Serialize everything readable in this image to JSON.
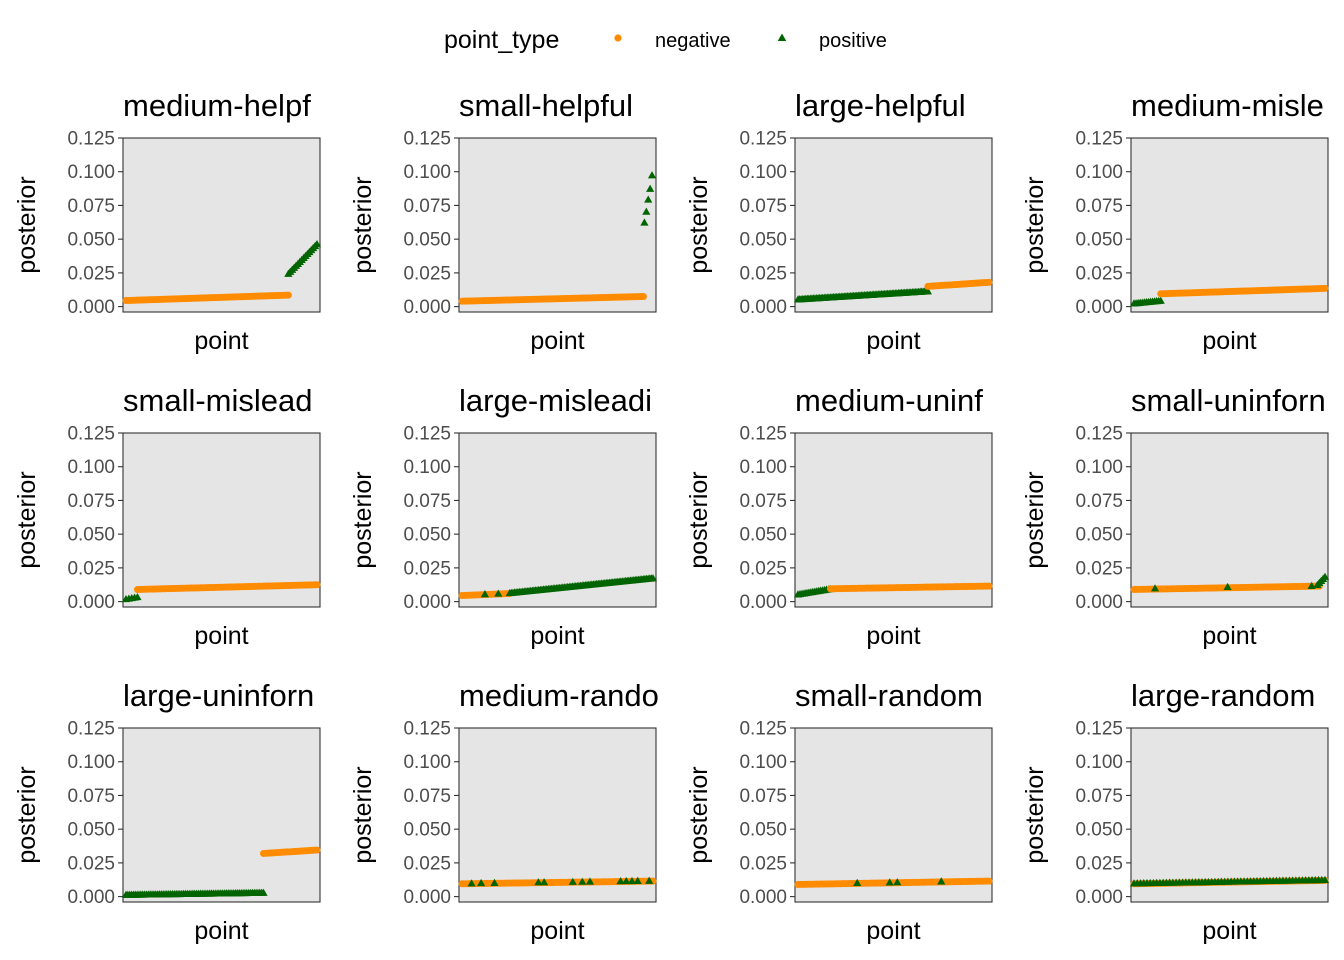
{
  "chart_data": {
    "type": "scatter",
    "legend": {
      "title": "point_type",
      "placement": "top",
      "entries": [
        {
          "name": "negative",
          "color": "#FF8C00",
          "shape": "circle"
        },
        {
          "name": "positive",
          "color": "#006400",
          "shape": "triangle"
        }
      ]
    },
    "xlabel": "point",
    "ylabel": "posterior",
    "ylim": [
      -0.004,
      0.125
    ],
    "yticks": [
      "0.000",
      "0.025",
      "0.050",
      "0.075",
      "0.100",
      "0.125"
    ],
    "ytick_values": [
      0,
      0.025,
      0.05,
      0.075,
      0.1,
      0.125
    ],
    "panel_background": "#E5E5E5",
    "panels": [
      {
        "title": "medium-helpf",
        "segments": [
          {
            "type": "negative",
            "x0": 0.0,
            "x1": 0.85,
            "y0": 0.0045,
            "y1": 0.0085,
            "n": 90
          },
          {
            "type": "positive",
            "x0": 0.85,
            "x1": 1.0,
            "y0": 0.024,
            "y1": 0.046,
            "n": 16
          }
        ]
      },
      {
        "title": "small-helpful",
        "segments": [
          {
            "type": "negative",
            "x0": 0.0,
            "x1": 0.95,
            "y0": 0.004,
            "y1": 0.0075,
            "n": 95
          }
        ],
        "points": [
          {
            "type": "positive",
            "x": 0.955,
            "y": 0.062
          },
          {
            "type": "positive",
            "x": 0.965,
            "y": 0.07
          },
          {
            "type": "positive",
            "x": 0.975,
            "y": 0.079
          },
          {
            "type": "positive",
            "x": 0.985,
            "y": 0.087
          },
          {
            "type": "positive",
            "x": 0.995,
            "y": 0.097
          }
        ]
      },
      {
        "title": "large-helpful",
        "segments": [
          {
            "type": "positive",
            "x0": 0.0,
            "x1": 0.68,
            "y0": 0.005,
            "y1": 0.011,
            "n": 85
          },
          {
            "type": "negative",
            "x0": 0.68,
            "x1": 1.0,
            "y0": 0.015,
            "y1": 0.018,
            "n": 35
          }
        ]
      },
      {
        "title": "medium-misle",
        "segments": [
          {
            "type": "positive",
            "x0": 0.0,
            "x1": 0.14,
            "y0": 0.002,
            "y1": 0.004,
            "n": 14
          },
          {
            "type": "negative",
            "x0": 0.14,
            "x1": 1.0,
            "y0": 0.0095,
            "y1": 0.0135,
            "n": 90
          }
        ]
      },
      {
        "title": "small-mislead",
        "segments": [
          {
            "type": "positive",
            "x0": 0.0,
            "x1": 0.06,
            "y0": 0.0015,
            "y1": 0.003,
            "n": 5
          },
          {
            "type": "negative",
            "x0": 0.06,
            "x1": 1.0,
            "y0": 0.009,
            "y1": 0.0125,
            "n": 95
          }
        ]
      },
      {
        "title": "large-misleadi",
        "segments": [
          {
            "type": "negative",
            "x0": 0.0,
            "x1": 0.25,
            "y0": 0.0045,
            "y1": 0.006,
            "n": 25
          },
          {
            "type": "positive",
            "x0": 0.25,
            "x1": 1.0,
            "y0": 0.006,
            "y1": 0.017,
            "n": 90
          }
        ],
        "points": [
          {
            "type": "positive",
            "x": 0.12,
            "y": 0.0052
          },
          {
            "type": "positive",
            "x": 0.19,
            "y": 0.0056
          }
        ]
      },
      {
        "title": "medium-uninf",
        "segments": [
          {
            "type": "positive",
            "x0": 0.0,
            "x1": 0.17,
            "y0": 0.005,
            "y1": 0.009,
            "n": 17
          },
          {
            "type": "negative",
            "x0": 0.17,
            "x1": 1.0,
            "y0": 0.0095,
            "y1": 0.0115,
            "n": 85
          }
        ]
      },
      {
        "title": "small-uninforn",
        "segments": [
          {
            "type": "negative",
            "x0": 0.0,
            "x1": 0.97,
            "y0": 0.009,
            "y1": 0.0115,
            "n": 95
          },
          {
            "type": "positive",
            "x0": 0.96,
            "x1": 1.0,
            "y0": 0.012,
            "y1": 0.018,
            "n": 5
          }
        ],
        "points": [
          {
            "type": "positive",
            "x": 0.11,
            "y": 0.0095
          },
          {
            "type": "positive",
            "x": 0.49,
            "y": 0.0105
          },
          {
            "type": "positive",
            "x": 0.93,
            "y": 0.0113
          }
        ]
      },
      {
        "title": "large-uninforn",
        "segments": [
          {
            "type": "positive",
            "x0": 0.0,
            "x1": 0.72,
            "y0": 0.001,
            "y1": 0.0025,
            "n": 75
          },
          {
            "type": "negative",
            "x0": 0.72,
            "x1": 1.0,
            "y0": 0.032,
            "y1": 0.0345,
            "n": 30
          }
        ]
      },
      {
        "title": "medium-rando",
        "segments": [
          {
            "type": "negative",
            "x0": 0.0,
            "x1": 1.0,
            "y0": 0.0095,
            "y1": 0.0115,
            "n": 100
          }
        ],
        "points": [
          {
            "type": "positive",
            "x": 0.05,
            "y": 0.0095
          },
          {
            "type": "positive",
            "x": 0.1,
            "y": 0.0097
          },
          {
            "type": "positive",
            "x": 0.17,
            "y": 0.0098
          },
          {
            "type": "positive",
            "x": 0.4,
            "y": 0.0103
          },
          {
            "type": "positive",
            "x": 0.43,
            "y": 0.0103
          },
          {
            "type": "positive",
            "x": 0.58,
            "y": 0.0106
          },
          {
            "type": "positive",
            "x": 0.63,
            "y": 0.0107
          },
          {
            "type": "positive",
            "x": 0.67,
            "y": 0.0108
          },
          {
            "type": "positive",
            "x": 0.83,
            "y": 0.0111
          },
          {
            "type": "positive",
            "x": 0.86,
            "y": 0.0112
          },
          {
            "type": "positive",
            "x": 0.89,
            "y": 0.0112
          },
          {
            "type": "positive",
            "x": 0.92,
            "y": 0.0113
          },
          {
            "type": "positive",
            "x": 0.98,
            "y": 0.0114
          }
        ]
      },
      {
        "title": "small-random",
        "segments": [
          {
            "type": "negative",
            "x0": 0.0,
            "x1": 1.0,
            "y0": 0.009,
            "y1": 0.0115,
            "n": 100
          }
        ],
        "points": [
          {
            "type": "positive",
            "x": 0.31,
            "y": 0.0098
          },
          {
            "type": "positive",
            "x": 0.48,
            "y": 0.0102
          },
          {
            "type": "positive",
            "x": 0.52,
            "y": 0.0103
          },
          {
            "type": "positive",
            "x": 0.75,
            "y": 0.0109
          }
        ]
      },
      {
        "title": "large-random",
        "segments": [
          {
            "type": "negative",
            "x0": 0.0,
            "x1": 1.0,
            "y0": 0.0095,
            "y1": 0.012,
            "n": 100
          },
          {
            "type": "positive",
            "x0": 0.0,
            "x1": 1.0,
            "y0": 0.0095,
            "y1": 0.012,
            "n": 60
          }
        ]
      }
    ]
  }
}
